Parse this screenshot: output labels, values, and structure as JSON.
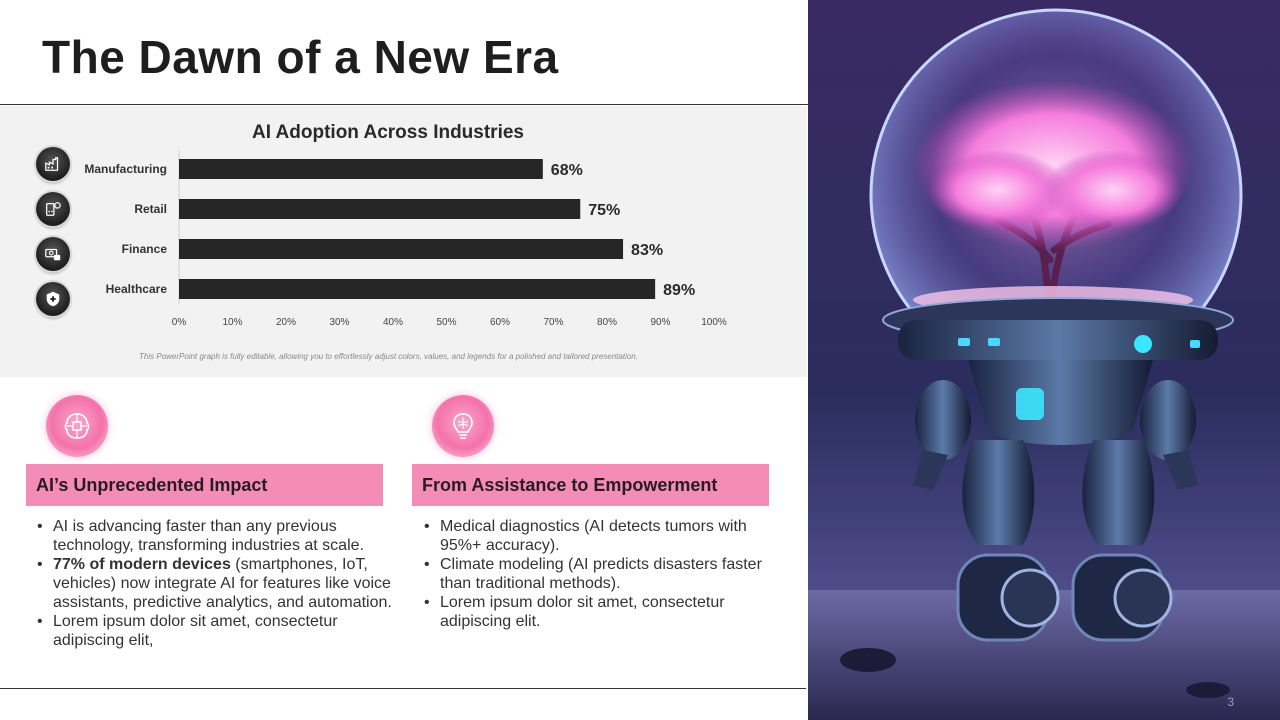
{
  "slide": {
    "title": "The Dawn of a New Era",
    "page_number": "3"
  },
  "chart_data": {
    "type": "bar",
    "orientation": "horizontal",
    "title": "AI Adoption Across Industries",
    "categories": [
      "Manufacturing",
      "Retail",
      "Finance",
      "Healthcare"
    ],
    "values": [
      68,
      75,
      83,
      89
    ],
    "data_labels": [
      "68%",
      "75%",
      "83%",
      "89%"
    ],
    "xlim": [
      0,
      100
    ],
    "x_ticks": [
      "0%",
      "10%",
      "20%",
      "30%",
      "40%",
      "50%",
      "60%",
      "70%",
      "80%",
      "90%",
      "100%"
    ],
    "bar_color": "#262626",
    "grid": false,
    "legend": "none",
    "icons": [
      "factory-icon",
      "retail-shop-icon",
      "finance-money-icon",
      "healthcare-shield-icon"
    ]
  },
  "chart_note": "This PowerPoint graph is fully editable, allowing you to effortlessly adjust colors, values, and legends for a polished and tailored presentation.",
  "left_section": {
    "icon": "ai-brain-circuit-icon",
    "header": "AI’s Unprecedented Impact",
    "bullet1": "AI is advancing faster than any previous technology, transforming industries at scale.",
    "bullet2_bold": "77% of modern devices",
    "bullet2_rest": " (smartphones, IoT, vehicles) now integrate AI for features like voice assistants, predictive analytics, and automation.",
    "bullet3": "Lorem ipsum dolor sit amet, consectetur adipiscing elit,"
  },
  "right_section": {
    "icon": "brain-lightbulb-icon",
    "header": "From Assistance to Empowerment",
    "bullet1": "Medical diagnostics (AI detects tumors with 95%+ accuracy).",
    "bullet2": "Climate modeling (AI predicts disasters faster than traditional methods).",
    "bullet3": "Lorem ipsum dolor sit amet, consectetur adipiscing elit."
  },
  "colors": {
    "accent_pink": "#f48cb8",
    "bar": "#262626",
    "panel": "#f2f2f2"
  }
}
